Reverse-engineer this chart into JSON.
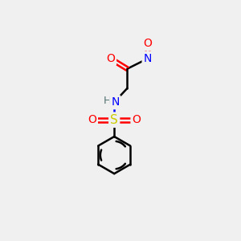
{
  "background_color": "#f0f0f0",
  "bond_color": "#000000",
  "atom_colors": {
    "O": "#ff0000",
    "N": "#0000ff",
    "S": "#cccc00",
    "H": "#507070",
    "C": "#000000"
  },
  "fig_size": [
    3.0,
    3.0
  ],
  "dpi": 100
}
